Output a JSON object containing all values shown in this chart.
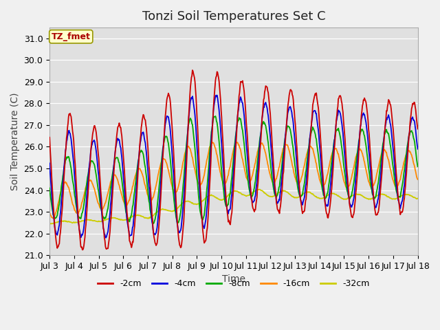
{
  "title": "Tonzi Soil Temperatures Set C",
  "xlabel": "Time",
  "ylabel": "Soil Temperature (C)",
  "annotation": "TZ_fmet",
  "ylim": [
    21.0,
    31.5
  ],
  "yticks": [
    21.0,
    22.0,
    23.0,
    24.0,
    25.0,
    26.0,
    27.0,
    28.0,
    29.0,
    30.0,
    31.0
  ],
  "xlim_days": [
    3,
    18
  ],
  "xtick_days": [
    3,
    4,
    5,
    6,
    7,
    8,
    9,
    10,
    11,
    12,
    13,
    14,
    15,
    16,
    17,
    18
  ],
  "legend_labels": [
    "-2cm",
    "-4cm",
    "-8cm",
    "-16cm",
    "-32cm"
  ],
  "line_colors": [
    "#cc0000",
    "#0000dd",
    "#00aa00",
    "#ff8800",
    "#cccc00"
  ],
  "fig_facecolor": "#f0f0f0",
  "ax_facecolor": "#e0e0e0",
  "grid_color": "#ffffff",
  "title_fontsize": 13,
  "axis_fontsize": 10,
  "tick_fontsize": 9,
  "linewidth": 1.3
}
